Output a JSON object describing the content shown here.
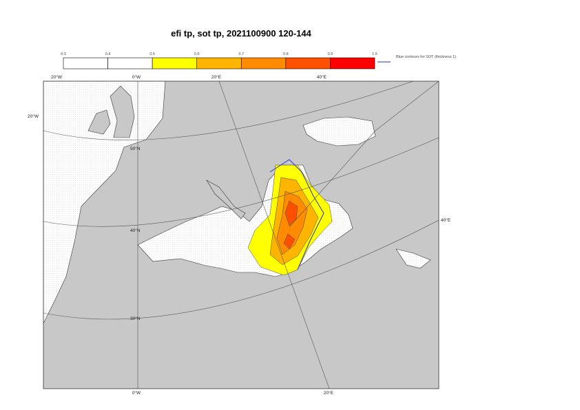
{
  "title": "efi tp, sot tp, 2021100900 120-144",
  "colorbar": {
    "ticks": [
      0.3,
      0.4,
      0.5,
      0.6,
      0.7,
      0.8,
      0.9,
      1.5
    ],
    "colors": [
      "#ffffff",
      "#ffffff",
      "#ffff00",
      "#ffb400",
      "#ff8c00",
      "#ff5000",
      "#ff0000"
    ]
  },
  "legend": "Blue contours for SOT (thickness 1)",
  "graticule_labels": [
    "20°W",
    "0°W",
    "20°E",
    "40°E",
    "20°W",
    "50°N",
    "40°N",
    "30°N",
    "40°E",
    "0°W",
    "20°E"
  ]
}
